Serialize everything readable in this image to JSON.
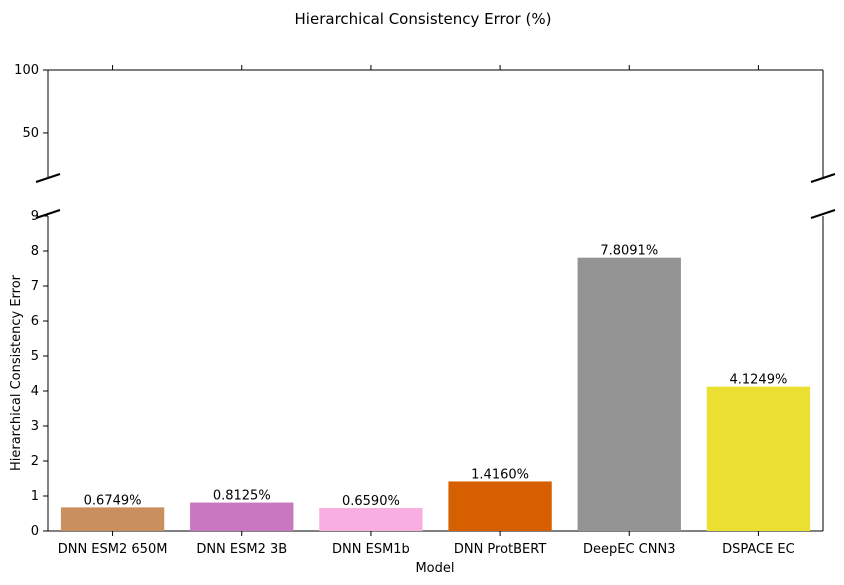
{
  "chart_data": {
    "type": "bar",
    "title": "Hierarchical Consistency Error (%)",
    "xlabel": "Model",
    "ylabel": "Hierarchical Consistency Error",
    "categories": [
      "DNN ESM2 650M",
      "DNN ESM2 3B",
      "DNN ESM1b",
      "DNN ProtBERT",
      "DeepEC CNN3",
      "DSPACE EC"
    ],
    "values": [
      0.6749,
      0.8125,
      0.659,
      1.416,
      7.8091,
      4.1249
    ],
    "value_labels": [
      "0.6749%",
      "0.8125%",
      "0.6590%",
      "1.4160%",
      "7.8091%",
      "4.1249%"
    ],
    "colors": [
      "#c98f5f",
      "#c878be",
      "#f9aee2",
      "#d65f00",
      "#949494",
      "#ebe032"
    ],
    "broken_axis": true,
    "upper_ylim": [
      15,
      100
    ],
    "upper_yticks": [
      "50",
      "100"
    ],
    "lower_ylim": [
      0,
      9
    ],
    "lower_yticks": [
      "0",
      "1",
      "2",
      "3",
      "4",
      "5",
      "6",
      "7",
      "8",
      "9"
    ],
    "grid": false,
    "legend": "none"
  }
}
